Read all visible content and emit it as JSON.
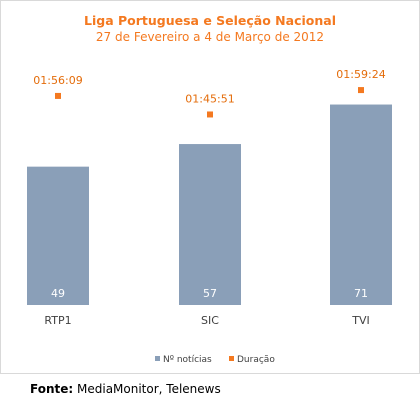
{
  "chart_data": {
    "type": "bar",
    "title": "Liga Portuguesa e Seleção Nacional",
    "subtitle": "27 de Fevereiro a 4 de Março de 2012",
    "categories": [
      "RTP1",
      "SIC",
      "TVI"
    ],
    "series": [
      {
        "name": "Nº notícias",
        "type": "bar",
        "values": [
          49,
          57,
          71
        ],
        "color": "#8a9fb8"
      },
      {
        "name": "Duração",
        "type": "scatter",
        "values": [
          "01:56:09",
          "01:45:51",
          "01:59:24"
        ],
        "values_seconds": [
          6969,
          6351,
          7164
        ],
        "color": "#f47920"
      }
    ],
    "ylim_primary": [
      0,
      85
    ],
    "ylim_secondary_seconds": [
      0,
      8000
    ],
    "grid": false,
    "legend_position": "bottom"
  },
  "source": {
    "label": "Fonte:",
    "text": "MediaMonitor, Telenews"
  }
}
